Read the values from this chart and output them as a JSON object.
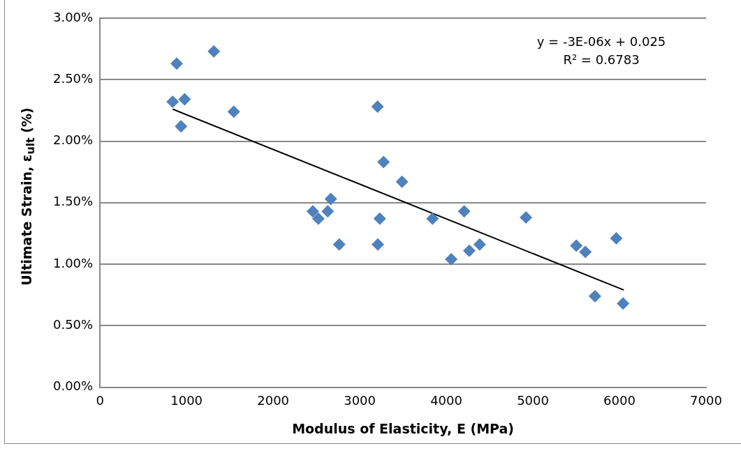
{
  "chart_data": {
    "type": "scatter",
    "xlabel": "Modulus of Elasticity, E (MPa)",
    "ylabel": "Ultimate Strain, ε$_{ult}$ (%)",
    "xlim": [
      0,
      7000
    ],
    "xticks": [
      0,
      1000,
      2000,
      3000,
      4000,
      5000,
      6000,
      7000
    ],
    "ylim": [
      0,
      3
    ],
    "yticks": [
      {
        "value": 0,
        "label": "0.00%"
      },
      {
        "value": 0.5,
        "label": "0.50%"
      },
      {
        "value": 1,
        "label": "1.00%"
      },
      {
        "value": 1.5,
        "label": "1.50%"
      },
      {
        "value": 2,
        "label": "2.00%"
      },
      {
        "value": 2.5,
        "label": "2.50%"
      },
      {
        "value": 3,
        "label": "3.00%"
      }
    ],
    "grid": "y",
    "marker": "diamond",
    "annotations": [
      "y = -3E-06x + 0.025",
      "R² = 0.6783"
    ],
    "series": [
      {
        "type": "scatter",
        "color": "#4f81bd",
        "x": [
          886,
          1315,
          839,
          977,
          936,
          1545,
          3206,
          3275,
          3488,
          2666,
          2458,
          2630,
          2522,
          2763,
          3231,
          3209,
          3840,
          4206,
          4057,
          4265,
          4385,
          4920,
          5501,
          5606,
          5963,
          5717,
          6041
        ],
        "values": [
          2.63,
          2.73,
          2.32,
          2.34,
          2.12,
          2.24,
          2.28,
          1.83,
          1.67,
          1.53,
          1.43,
          1.43,
          1.37,
          1.16,
          1.37,
          1.16,
          1.37,
          1.43,
          1.04,
          1.11,
          1.16,
          1.38,
          1.15,
          1.1,
          1.21,
          0.74,
          0.68
        ]
      },
      {
        "type": "line",
        "color": "#000000",
        "marker": "none",
        "x": [
          839,
          6050
        ],
        "values": [
          2.26,
          0.79
        ]
      }
    ]
  }
}
